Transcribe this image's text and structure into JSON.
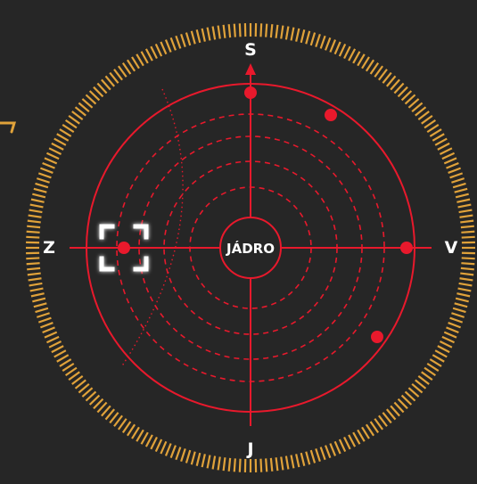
{
  "colors": {
    "background": "#262626",
    "radar_red": "#e8192c",
    "dial_orange": "#e0a23a",
    "marker_white": "#ffffff"
  },
  "compass": {
    "north": "S",
    "east": "V",
    "south": "J",
    "west": "Z"
  },
  "core_label": "JÁDRO",
  "icons": {
    "north_arrow": "north-arrow-icon",
    "target_reticle": "target-reticle-icon"
  }
}
